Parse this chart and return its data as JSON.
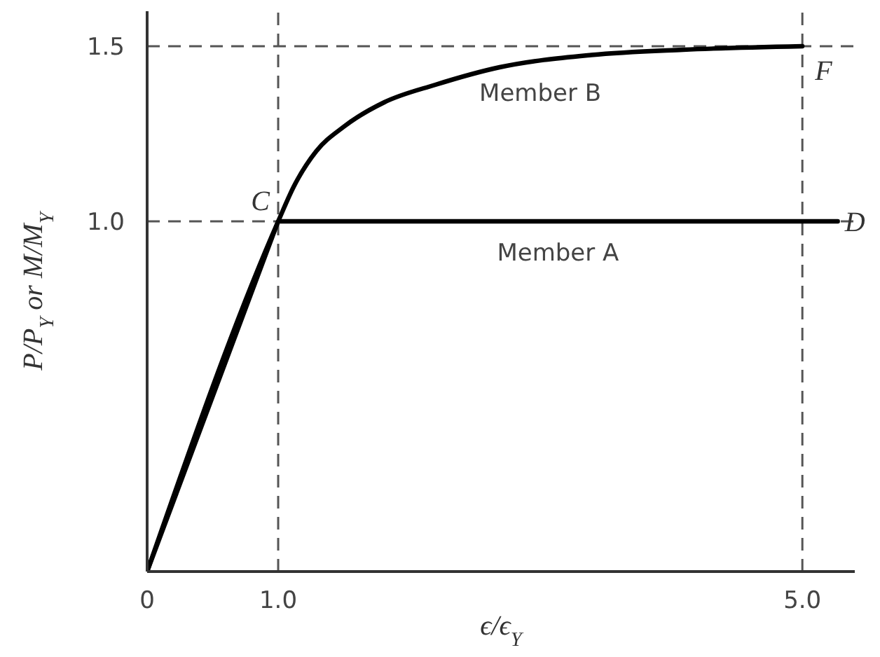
{
  "chart_data": {
    "type": "line",
    "xlabel": "ϵ/ϵ$_{Y}$",
    "ylabel": "P/P$_{Y}$ or M/M$_{Y}$",
    "xlim": [
      0,
      5.4
    ],
    "ylim": [
      0,
      1.6
    ],
    "xticks": [
      0,
      {
        "value": 1,
        "label": "1.0"
      },
      {
        "value": 5,
        "label": "5.0"
      }
    ],
    "yticks": [
      {
        "value": 1,
        "label": "1.0"
      },
      1.5
    ],
    "series": [
      {
        "name": "Member A",
        "color": "#000000",
        "x": [
          0,
          1,
          5.27
        ],
        "values": [
          0,
          1,
          1
        ]
      },
      {
        "name": "Member B",
        "color": "#000000",
        "x": [
          0,
          1,
          1.12,
          1.29,
          1.5,
          1.81,
          2.2,
          2.69,
          3.39,
          4.09,
          5
        ],
        "values": [
          0,
          1,
          1.1,
          1.2,
          1.27,
          1.34,
          1.39,
          1.44,
          1.475,
          1.49,
          1.5
        ]
      }
    ],
    "ref_lines": [
      {
        "axis": "y",
        "value": 1.5,
        "color": "#555555",
        "line_style": "dashed"
      },
      {
        "axis": "y",
        "value": 1,
        "color": "#555555",
        "line_style": "dashed"
      },
      {
        "axis": "x",
        "value": 1,
        "color": "#555555",
        "line_style": "dashed"
      },
      {
        "axis": "x",
        "value": 5,
        "color": "#555555",
        "line_style": "dashed"
      }
    ],
    "annotations": [
      {
        "text": "C",
        "x": 1,
        "y": 1
      },
      {
        "text": "D",
        "x": 5.27,
        "y": 1
      },
      {
        "text": "F",
        "x": 5,
        "y": 1.5
      }
    ],
    "marker": "none",
    "line_style": "solid"
  }
}
